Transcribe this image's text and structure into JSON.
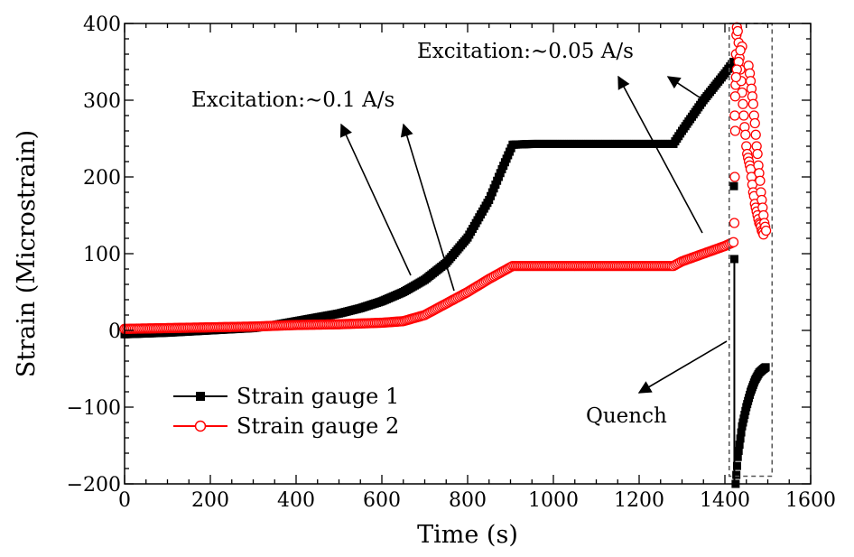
{
  "chart_data": {
    "type": "scatter",
    "xlabel": "Time (s)",
    "ylabel": "Strain (Microstrain)",
    "xlim": [
      0,
      1600
    ],
    "ylim": [
      -200,
      400
    ],
    "xticks": [
      0,
      200,
      400,
      600,
      800,
      1000,
      1200,
      1400,
      1600
    ],
    "yticks": [
      -200,
      -100,
      0,
      100,
      200,
      300,
      400
    ],
    "ytick_labels": [
      "−200",
      "−100",
      "0",
      "100",
      "200",
      "300",
      "400"
    ],
    "grid": false,
    "legend_position": "bottom-left",
    "series": [
      {
        "name": "Strain gauge 1",
        "color": "#000000",
        "marker": "square-filled",
        "points": [
          [
            0,
            -5
          ],
          [
            100,
            -3
          ],
          [
            200,
            0
          ],
          [
            300,
            3
          ],
          [
            350,
            7
          ],
          [
            400,
            12
          ],
          [
            450,
            17
          ],
          [
            500,
            22
          ],
          [
            550,
            29
          ],
          [
            600,
            38
          ],
          [
            650,
            50
          ],
          [
            700,
            66
          ],
          [
            750,
            88
          ],
          [
            800,
            121
          ],
          [
            850,
            170
          ],
          [
            880,
            210
          ],
          [
            905,
            242
          ],
          [
            950,
            243
          ],
          [
            1000,
            243
          ],
          [
            1100,
            243
          ],
          [
            1200,
            243
          ],
          [
            1280,
            243
          ],
          [
            1300,
            260
          ],
          [
            1350,
            300
          ],
          [
            1400,
            335
          ],
          [
            1420,
            350
          ]
        ],
        "drop_points": [
          [
            1421,
            188
          ],
          [
            1422,
            93
          ]
        ],
        "recovery_points": [
          [
            1425,
            -200
          ],
          [
            1430,
            -165
          ],
          [
            1440,
            -125
          ],
          [
            1450,
            -100
          ],
          [
            1460,
            -80
          ],
          [
            1470,
            -65
          ],
          [
            1480,
            -55
          ],
          [
            1490,
            -50
          ],
          [
            1495,
            -48
          ]
        ]
      },
      {
        "name": "Strain gauge 2",
        "color": "#ff0000",
        "marker": "circle-open",
        "points": [
          [
            0,
            2
          ],
          [
            100,
            3
          ],
          [
            200,
            4
          ],
          [
            300,
            5
          ],
          [
            400,
            7
          ],
          [
            500,
            8
          ],
          [
            600,
            10
          ],
          [
            650,
            12
          ],
          [
            700,
            20
          ],
          [
            750,
            35
          ],
          [
            800,
            50
          ],
          [
            850,
            67
          ],
          [
            905,
            84
          ],
          [
            1000,
            84
          ],
          [
            1100,
            84
          ],
          [
            1200,
            84
          ],
          [
            1280,
            84
          ],
          [
            1300,
            90
          ],
          [
            1350,
            100
          ],
          [
            1400,
            110
          ],
          [
            1420,
            115
          ]
        ],
        "quench_points": [
          [
            1422,
            140
          ],
          [
            1423,
            200
          ],
          [
            1424,
            260
          ],
          [
            1425,
            320
          ],
          [
            1426,
            360
          ],
          [
            1427,
            385
          ],
          [
            1428,
            395
          ],
          [
            1430,
            390
          ],
          [
            1432,
            375
          ],
          [
            1434,
            355
          ],
          [
            1436,
            340
          ],
          [
            1438,
            325
          ],
          [
            1440,
            310
          ],
          [
            1442,
            295
          ],
          [
            1444,
            280
          ],
          [
            1446,
            265
          ],
          [
            1448,
            255
          ],
          [
            1450,
            240
          ],
          [
            1452,
            230
          ],
          [
            1454,
            225
          ],
          [
            1456,
            220
          ],
          [
            1458,
            215
          ],
          [
            1460,
            210
          ],
          [
            1462,
            200
          ],
          [
            1464,
            190
          ],
          [
            1466,
            180
          ],
          [
            1468,
            175
          ],
          [
            1470,
            165
          ],
          [
            1472,
            160
          ],
          [
            1474,
            155
          ],
          [
            1476,
            150
          ],
          [
            1478,
            145
          ],
          [
            1480,
            140
          ],
          [
            1482,
            138
          ],
          [
            1484,
            135
          ],
          [
            1486,
            130
          ],
          [
            1488,
            128
          ],
          [
            1490,
            125
          ],
          [
            1455,
            345
          ],
          [
            1458,
            335
          ],
          [
            1460,
            325
          ],
          [
            1462,
            315
          ],
          [
            1464,
            305
          ],
          [
            1466,
            295
          ],
          [
            1468,
            280
          ],
          [
            1470,
            270
          ],
          [
            1472,
            255
          ],
          [
            1474,
            240
          ],
          [
            1476,
            230
          ],
          [
            1478,
            215
          ],
          [
            1480,
            205
          ],
          [
            1482,
            195
          ],
          [
            1484,
            180
          ],
          [
            1486,
            170
          ],
          [
            1488,
            160
          ],
          [
            1490,
            150
          ],
          [
            1492,
            140
          ],
          [
            1494,
            135
          ],
          [
            1496,
            130
          ],
          [
            1440,
            370
          ],
          [
            1436,
            365
          ],
          [
            1432,
            350
          ],
          [
            1428,
            340
          ],
          [
            1426,
            330
          ],
          [
            1424,
            305
          ],
          [
            1423,
            280
          ]
        ]
      }
    ],
    "annotations": [
      {
        "text": "Excitation:∼0.1 A/s",
        "arrows": [
          [
            [
              455,
              305
            ],
            [
              378,
              138
            ]
          ],
          [
            [
              503,
              322
            ],
            [
              447,
              138
            ]
          ]
        ]
      },
      {
        "text": "Excitation:∼0.05 A/s",
        "arrows": [
          [
            [
              778,
              258
            ],
            [
              685,
              85
            ]
          ],
          [
            [
              778,
              110
            ],
            [
              740,
              85
            ]
          ]
        ]
      },
      {
        "text": "Quench",
        "arrows": [
          [
            [
              805,
              378
            ],
            [
              708,
              435
            ]
          ]
        ]
      }
    ],
    "quench_box": {
      "x": [
        1410,
        1510
      ],
      "y": [
        -190,
        400
      ]
    }
  }
}
